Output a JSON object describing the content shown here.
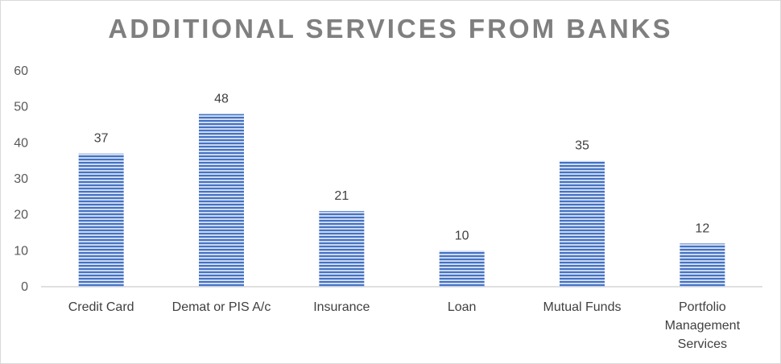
{
  "chart_data": {
    "type": "bar",
    "title": "ADDITIONAL SERVICES FROM BANKS",
    "categories": [
      "Credit Card",
      "Demat or PIS A/c",
      "Insurance",
      "Loan",
      "Mutual Funds",
      "Portfolio Management Services"
    ],
    "values": [
      37,
      48,
      21,
      10,
      35,
      12
    ],
    "ylim": [
      0,
      60
    ],
    "yticks": [
      0,
      10,
      20,
      30,
      40,
      50,
      60
    ],
    "grid": false,
    "data_labels": true,
    "bar_color": "#4472c4",
    "bar_stripe_color": "#dae3f3"
  }
}
